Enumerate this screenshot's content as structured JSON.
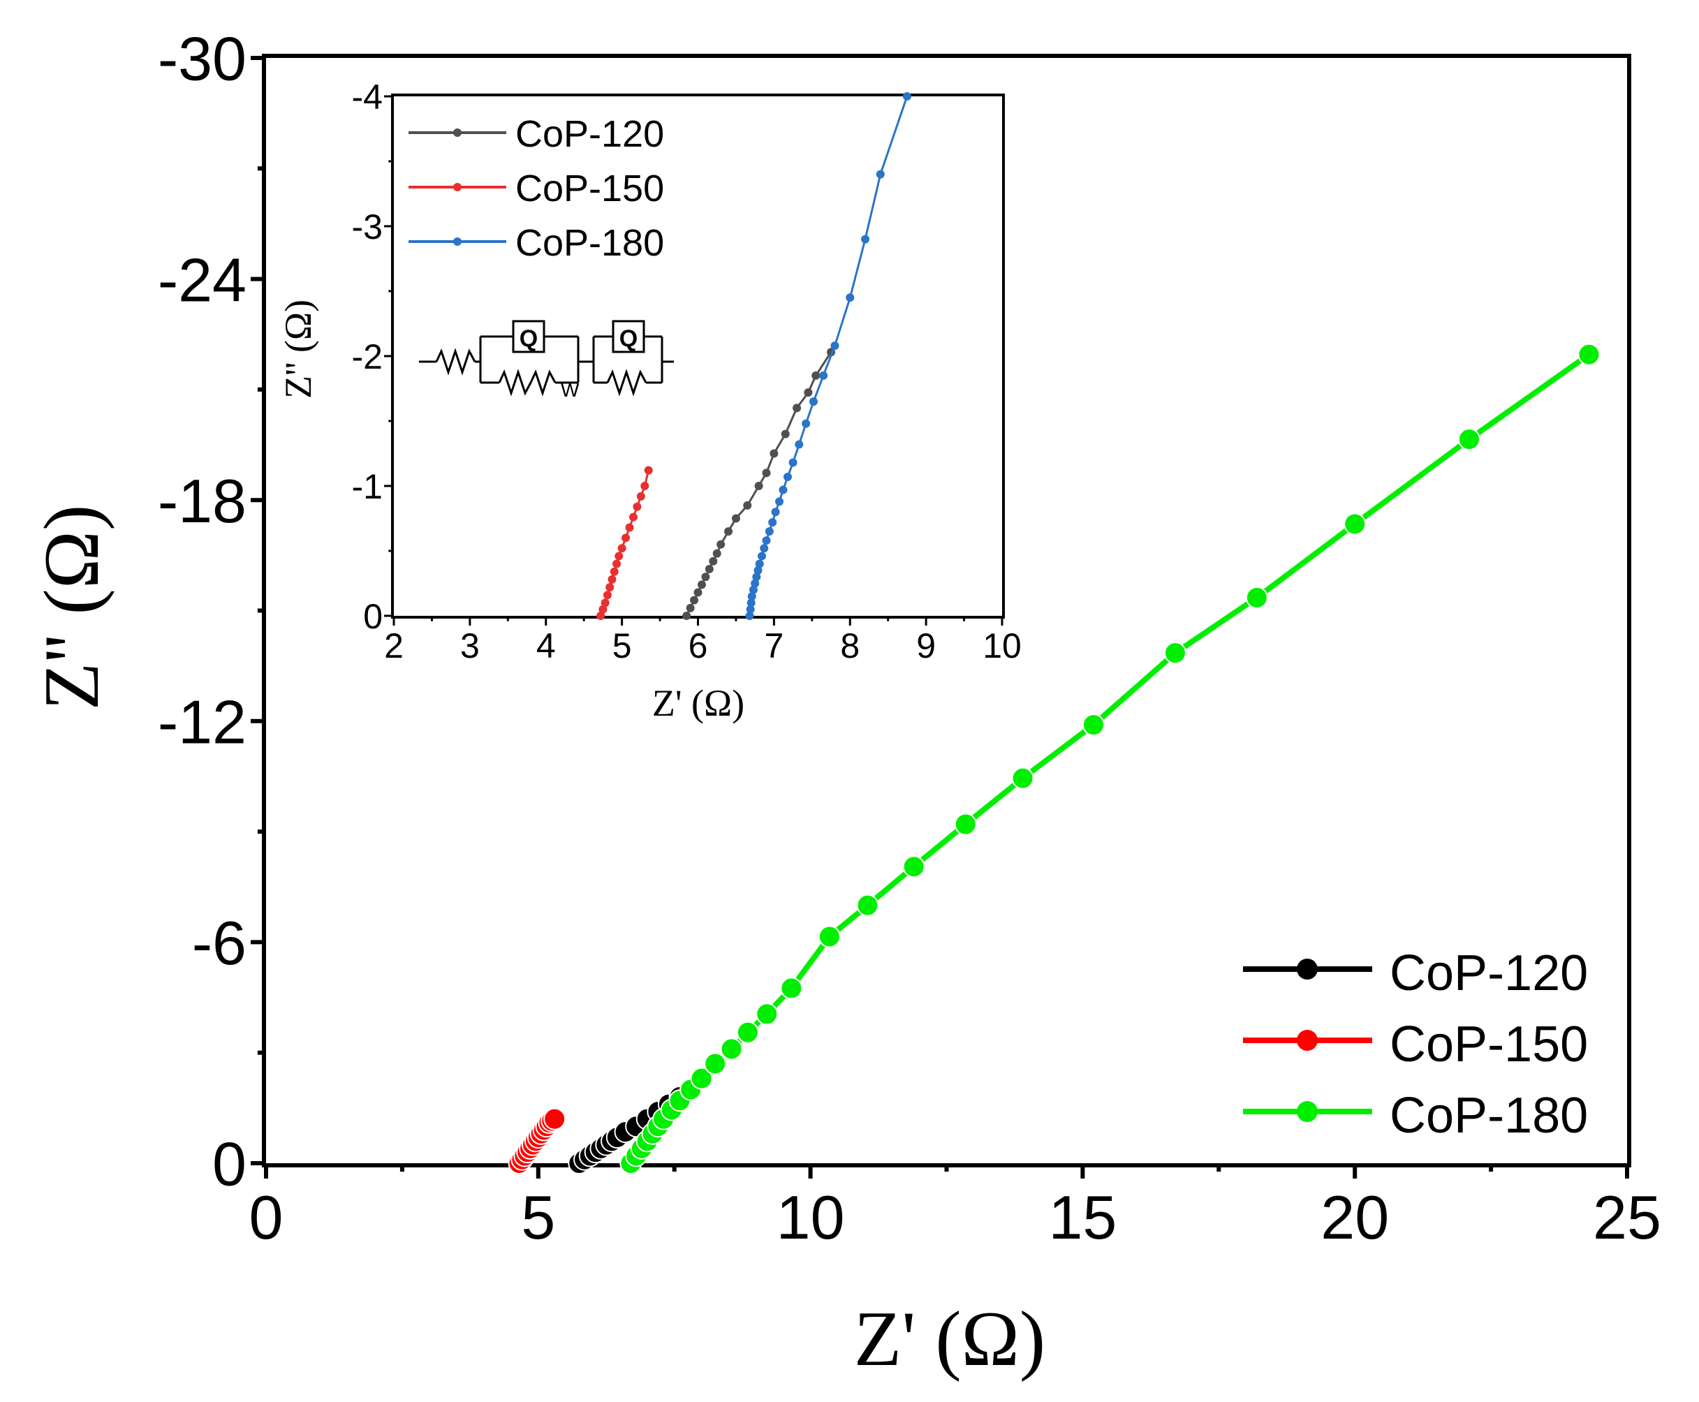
{
  "chart_data": [
    {
      "id": "main",
      "type": "scatter",
      "xlabel": "Z' (Ω)",
      "ylabel": "Z'' (Ω)",
      "xlim": [
        0,
        25
      ],
      "ylim": [
        0,
        -30
      ],
      "xticks": [
        0,
        5,
        10,
        15,
        20,
        25
      ],
      "xtick_labels": [
        "0",
        "5",
        "10",
        "15",
        "20",
        "25"
      ],
      "yticks": [
        0,
        -6,
        -12,
        -18,
        -24,
        -30
      ],
      "ytick_labels": [
        "0",
        "-6",
        "-12",
        "-18",
        "-24",
        "-30"
      ],
      "legend_position": "bottom-right",
      "series": [
        {
          "name": "CoP-120",
          "color": "#000000",
          "x": [
            5.75,
            5.85,
            5.95,
            6.05,
            6.15,
            6.25,
            6.35,
            6.45,
            6.6,
            6.8,
            7.0,
            7.2,
            7.4,
            7.6,
            7.8
          ],
          "y": [
            0,
            -0.1,
            -0.2,
            -0.3,
            -0.4,
            -0.5,
            -0.6,
            -0.7,
            -0.85,
            -1.0,
            -1.2,
            -1.4,
            -1.6,
            -1.8,
            -2.0
          ]
        },
        {
          "name": "CoP-150",
          "color": "#ff0000",
          "x": [
            4.65,
            4.7,
            4.75,
            4.8,
            4.85,
            4.9,
            4.95,
            5.0,
            5.05,
            5.1,
            5.15,
            5.2,
            5.25,
            5.3
          ],
          "y": [
            0,
            -0.1,
            -0.2,
            -0.3,
            -0.4,
            -0.5,
            -0.6,
            -0.7,
            -0.8,
            -0.9,
            -1.0,
            -1.1,
            -1.15,
            -1.2
          ]
        },
        {
          "name": "CoP-180",
          "color": "#00ee00",
          "x": [
            6.7,
            6.8,
            6.9,
            7.0,
            7.1,
            7.2,
            7.3,
            7.45,
            7.6,
            7.8,
            8.0,
            8.25,
            8.55,
            8.85,
            9.2,
            9.65,
            10.35,
            11.05,
            11.9,
            12.85,
            13.9,
            15.2,
            16.7,
            18.2,
            20.0,
            22.1,
            24.3
          ],
          "y": [
            0,
            -0.2,
            -0.4,
            -0.6,
            -0.8,
            -1.0,
            -1.2,
            -1.45,
            -1.7,
            -2.0,
            -2.3,
            -2.7,
            -3.1,
            -3.55,
            -4.05,
            -4.75,
            -6.15,
            -7.0,
            -8.05,
            -9.2,
            -10.45,
            -11.9,
            -13.85,
            -15.35,
            -17.35,
            -19.65,
            -21.95
          ]
        }
      ]
    },
    {
      "id": "inset",
      "type": "line",
      "xlabel": "Z' (Ω)",
      "ylabel": "Z'' (Ω)",
      "xlim": [
        2,
        10
      ],
      "ylim": [
        0,
        -4
      ],
      "xticks": [
        2,
        3,
        4,
        5,
        6,
        7,
        8,
        9,
        10
      ],
      "xtick_labels": [
        "2",
        "3",
        "4",
        "5",
        "6",
        "7",
        "8",
        "9",
        "10"
      ],
      "yticks": [
        0,
        -1,
        -2,
        -3,
        -4
      ],
      "ytick_labels": [
        "0",
        "-1",
        "-2",
        "-3",
        "-4"
      ],
      "legend_position": "top-left",
      "circuit_labels": [
        "Q",
        "W",
        "Q"
      ],
      "series": [
        {
          "name": "CoP-120",
          "color": "#505050",
          "x": [
            5.85,
            5.9,
            5.95,
            6.0,
            6.05,
            6.1,
            6.15,
            6.2,
            6.25,
            6.3,
            6.4,
            6.5,
            6.65,
            6.8,
            6.9,
            7.0,
            7.15,
            7.3,
            7.45,
            7.55,
            7.75
          ],
          "y": [
            0,
            -0.06,
            -0.12,
            -0.18,
            -0.24,
            -0.3,
            -0.36,
            -0.42,
            -0.48,
            -0.55,
            -0.65,
            -0.75,
            -0.85,
            -1.0,
            -1.1,
            -1.25,
            -1.4,
            -1.6,
            -1.72,
            -1.85,
            -2.03
          ]
        },
        {
          "name": "CoP-150",
          "color": "#e83030",
          "x": [
            4.72,
            4.75,
            4.78,
            4.81,
            4.84,
            4.87,
            4.9,
            4.93,
            4.96,
            5.0,
            5.05,
            5.1,
            5.15,
            5.2,
            5.25,
            5.3,
            5.35
          ],
          "y": [
            0,
            -0.05,
            -0.1,
            -0.16,
            -0.22,
            -0.28,
            -0.34,
            -0.4,
            -0.46,
            -0.52,
            -0.6,
            -0.68,
            -0.76,
            -0.84,
            -0.92,
            -1.0,
            -1.12
          ]
        },
        {
          "name": "CoP-180",
          "color": "#2a74c9",
          "x": [
            6.68,
            6.69,
            6.7,
            6.71,
            6.73,
            6.75,
            6.77,
            6.79,
            6.81,
            6.84,
            6.87,
            6.9,
            6.94,
            6.98,
            7.02,
            7.07,
            7.12,
            7.18,
            7.25,
            7.33,
            7.42,
            7.52,
            7.65,
            7.8,
            8.0,
            8.2,
            8.4,
            8.75
          ],
          "y": [
            0,
            -0.05,
            -0.1,
            -0.15,
            -0.2,
            -0.25,
            -0.3,
            -0.35,
            -0.4,
            -0.46,
            -0.52,
            -0.58,
            -0.65,
            -0.72,
            -0.8,
            -0.88,
            -0.97,
            -1.07,
            -1.18,
            -1.32,
            -1.48,
            -1.65,
            -1.85,
            -2.08,
            -2.45,
            -2.9,
            -3.4,
            -4.0
          ]
        }
      ]
    }
  ]
}
